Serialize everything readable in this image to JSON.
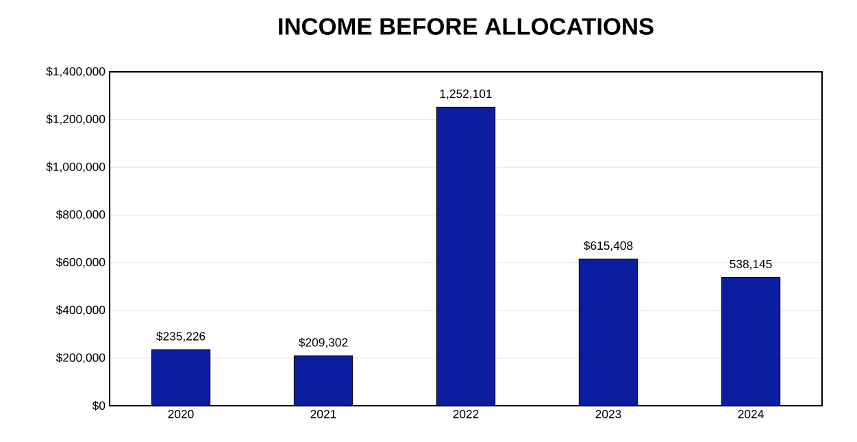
{
  "chart_data": {
    "type": "bar",
    "title": "INCOME BEFORE ALLOCATIONS",
    "categories": [
      "2020",
      "2021",
      "2022",
      "2023",
      "2024"
    ],
    "values": [
      235226,
      209302,
      1252101,
      615408,
      538145
    ],
    "value_labels": [
      "$235,226",
      "$209,302",
      "1,252,101",
      "$615,408",
      "538,145"
    ],
    "color": "#0c1ea0",
    "ylim": [
      0,
      1400000
    ],
    "yticks": [
      {
        "value": 0,
        "label": "$0"
      },
      {
        "value": 200000,
        "label": "$200,000"
      },
      {
        "value": 400000,
        "label": "$400,000"
      },
      {
        "value": 600000,
        "label": "$600,000"
      },
      {
        "value": 800000,
        "label": "$800,000"
      },
      {
        "value": 1000000,
        "label": "$1,000,000"
      },
      {
        "value": 1200000,
        "label": "$1,200,000"
      },
      {
        "value": 1400000,
        "label": "$1,400,000"
      }
    ],
    "grid": "y"
  }
}
